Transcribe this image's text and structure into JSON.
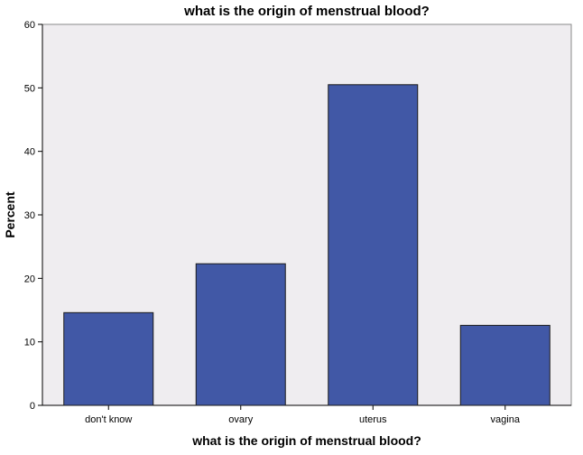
{
  "chart_data": {
    "type": "bar",
    "title": "what is the origin of menstrual blood?",
    "xlabel": "what is the origin of menstrual blood?",
    "ylabel": "Percent",
    "categories": [
      "don't know",
      "ovary",
      "uterus",
      "vagina"
    ],
    "values": [
      14.6,
      22.3,
      50.5,
      12.6
    ],
    "ylim": [
      0,
      60
    ],
    "yticks": [
      "0",
      "10",
      "20",
      "30",
      "40",
      "50",
      "60"
    ],
    "grid": false,
    "legend": "none",
    "colors": {
      "bar_fill": "#4158a6",
      "bar_stroke": "#1a1a1a",
      "plot_background": "#efedf0",
      "plot_border": "#8a8a8a"
    }
  }
}
